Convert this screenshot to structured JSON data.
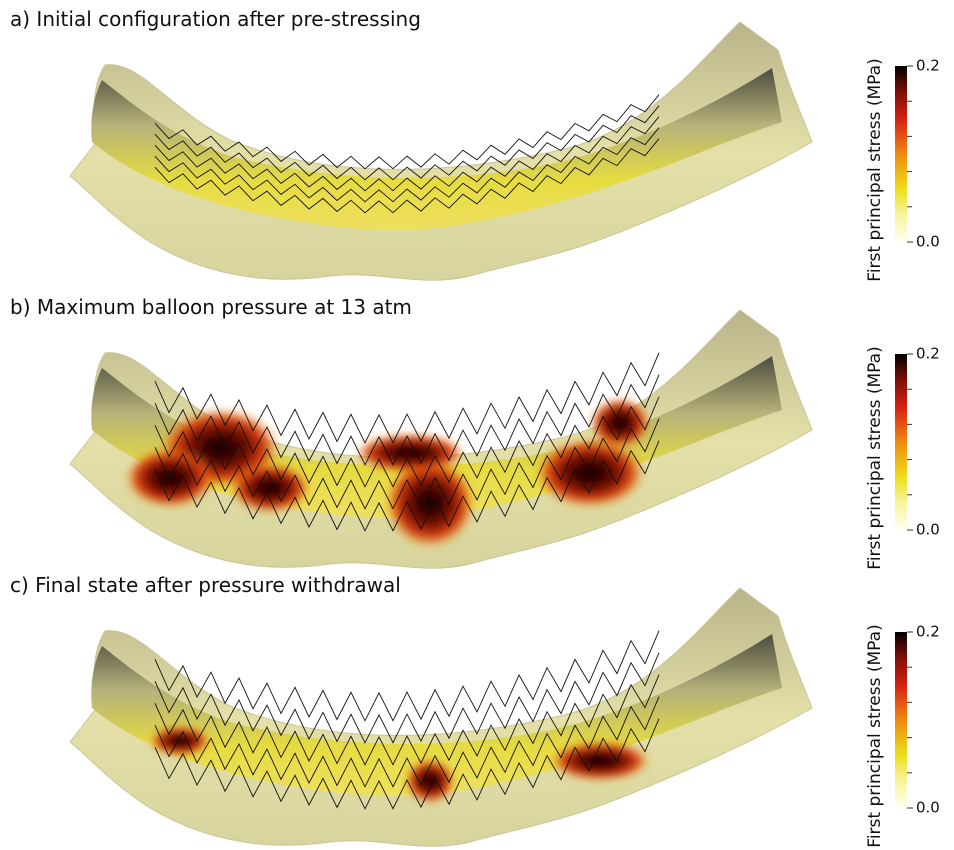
{
  "panels": [
    {
      "title": "a) Initial configuration after pre-stressing",
      "colorbar": {
        "label": "First principal stress (MPa)",
        "range": [
          0,
          0.2
        ],
        "ticks": [
          {
            "value": 0,
            "label": "0.0"
          },
          {
            "value": 0.2,
            "label": "0.2"
          }
        ],
        "minor_ticks": [
          0.04,
          0.08,
          0.12,
          0.16
        ]
      }
    },
    {
      "title": "b) Maximum balloon pressure at 13 atm",
      "colorbar": {
        "label": "First principal stress (MPa)",
        "range": [
          0,
          0.2
        ],
        "ticks": [
          {
            "value": 0,
            "label": "0.0"
          },
          {
            "value": 0.2,
            "label": "0.2"
          }
        ],
        "minor_ticks": [
          0.04,
          0.08,
          0.12,
          0.16
        ]
      }
    },
    {
      "title": "c) Final state after pressure withdrawal",
      "colorbar": {
        "label": "First principal stress (MPa)",
        "range": [
          0,
          0.2
        ],
        "ticks": [
          {
            "value": 0,
            "label": "0.0"
          },
          {
            "value": 0.2,
            "label": "0.2"
          }
        ],
        "minor_ticks": [
          0.04,
          0.08,
          0.12,
          0.16
        ]
      }
    }
  ]
}
